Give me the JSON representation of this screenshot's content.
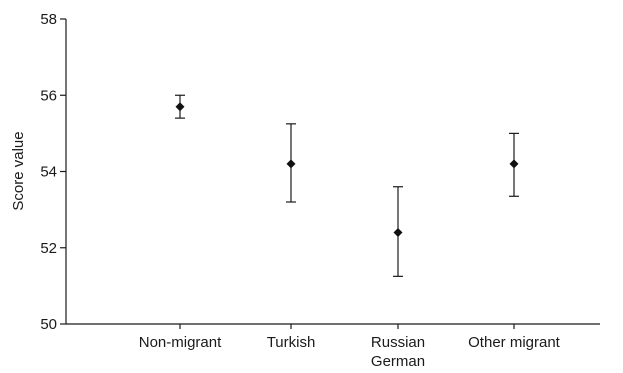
{
  "chart_data": {
    "type": "scatter",
    "title": "",
    "xlabel": "",
    "ylabel": "Score value",
    "ylim": [
      50,
      58
    ],
    "yticks": [
      50,
      52,
      54,
      56,
      58
    ],
    "grid": false,
    "categories": [
      [
        "Non-migrant"
      ],
      [
        "Turkish"
      ],
      [
        "Russian",
        "German"
      ],
      [
        "Other migrant"
      ]
    ],
    "series": [
      {
        "values": [
          55.7,
          54.2,
          52.4,
          54.2
        ],
        "lower": [
          55.4,
          53.2,
          51.25,
          53.35
        ],
        "upper": [
          56.0,
          55.25,
          53.6,
          55.0
        ]
      }
    ]
  }
}
